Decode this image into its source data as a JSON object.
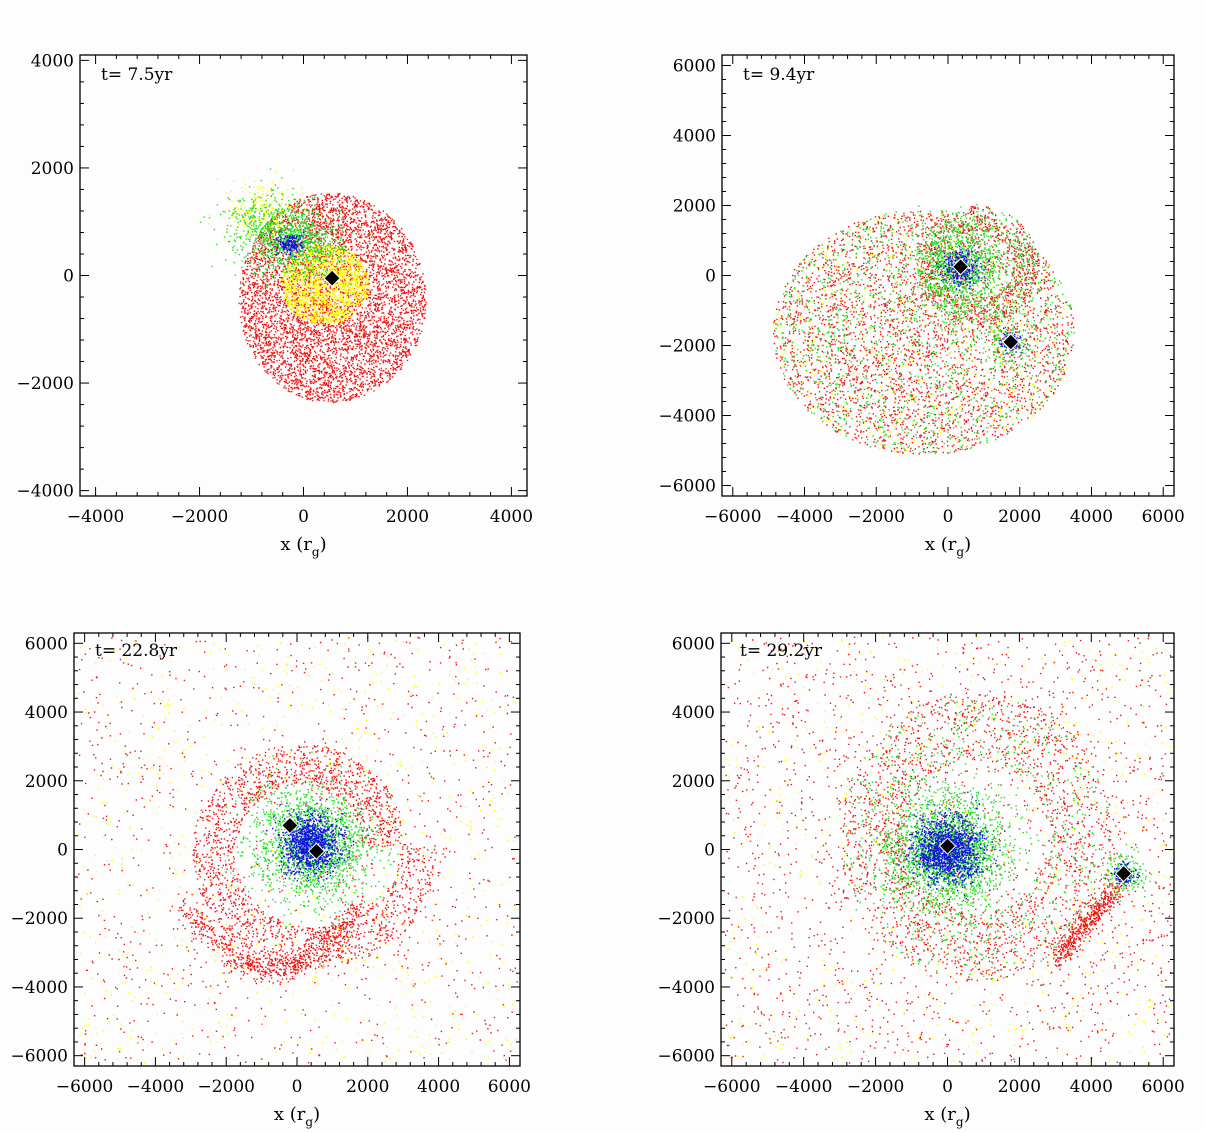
{
  "chart_data": [
    {
      "type": "scatter",
      "time_label": "t=  7.5yr",
      "xlabel": "x (r",
      "xlabel_sub": "g",
      "xlabel_close": ")",
      "xlim": [
        -4300,
        4300
      ],
      "ylim": [
        -4100,
        4100
      ],
      "xticks": [
        -4000,
        -2000,
        0,
        2000,
        4000
      ],
      "yticks": [
        -4000,
        -2000,
        0,
        2000,
        4000
      ],
      "xticklabels": [
        "−4000",
        "−2000",
        "0",
        "2000",
        "4000"
      ],
      "yticklabels": [
        "−4000",
        "−2000",
        "0",
        "2000",
        "4000"
      ],
      "black_holes": [
        {
          "x": 550,
          "y": -50
        }
      ],
      "blue_cores": [
        {
          "x": -250,
          "y": 600
        }
      ],
      "series_colors": {
        "red": "#ee1111",
        "yellow": "#ffff00",
        "green": "#22dd22",
        "blue": "#1111dd"
      }
    },
    {
      "type": "scatter",
      "time_label": "t=  9.4yr",
      "xlabel": "x (r",
      "xlabel_sub": "g",
      "xlabel_close": ")",
      "xlim": [
        -6300,
        6300
      ],
      "ylim": [
        -6300,
        6300
      ],
      "xticks": [
        -6000,
        -4000,
        -2000,
        0,
        2000,
        4000,
        6000
      ],
      "yticks": [
        -6000,
        -4000,
        -2000,
        0,
        2000,
        4000,
        6000
      ],
      "xticklabels": [
        "−6000",
        "−4000",
        "−2000",
        "0",
        "2000",
        "4000",
        "6000"
      ],
      "yticklabels": [
        "−6000",
        "−4000",
        "−2000",
        "0",
        "2000",
        "4000",
        "6000"
      ],
      "black_holes": [
        {
          "x": 350,
          "y": 250
        },
        {
          "x": 1750,
          "y": -1900
        }
      ],
      "blue_cores": [
        {
          "x": 350,
          "y": 250
        },
        {
          "x": 1750,
          "y": -1900
        }
      ],
      "series_colors": {
        "red": "#ee1111",
        "yellow": "#ffff00",
        "green": "#22dd22",
        "blue": "#1111dd"
      }
    },
    {
      "type": "scatter",
      "time_label": "t=  22.8yr",
      "xlabel": "x (r",
      "xlabel_sub": "g",
      "xlabel_close": ")",
      "xlim": [
        -6300,
        6300
      ],
      "ylim": [
        -6300,
        6300
      ],
      "xticks": [
        -6000,
        -4000,
        -2000,
        0,
        2000,
        4000,
        6000
      ],
      "yticks": [
        -6000,
        -4000,
        -2000,
        0,
        2000,
        4000,
        6000
      ],
      "xticklabels": [
        "−6000",
        "−4000",
        "−2000",
        "0",
        "2000",
        "4000",
        "6000"
      ],
      "yticklabels": [
        "−6000",
        "−4000",
        "−2000",
        "0",
        "2000",
        "4000",
        "6000"
      ],
      "black_holes": [
        {
          "x": -200,
          "y": 700
        },
        {
          "x": 550,
          "y": -50
        }
      ],
      "blue_cores": [
        {
          "x": 400,
          "y": 200
        }
      ],
      "series_colors": {
        "red": "#ee1111",
        "yellow": "#ffff00",
        "green": "#22dd22",
        "blue": "#1111dd"
      }
    },
    {
      "type": "scatter",
      "time_label": "t=  29.2yr",
      "xlabel": "x (r",
      "xlabel_sub": "g",
      "xlabel_close": ")",
      "xlim": [
        -6300,
        6300
      ],
      "ylim": [
        -6300,
        6300
      ],
      "xticks": [
        -6000,
        -4000,
        -2000,
        0,
        2000,
        4000,
        6000
      ],
      "yticks": [
        -6000,
        -4000,
        -2000,
        0,
        2000,
        4000,
        6000
      ],
      "xticklabels": [
        "−6000",
        "−4000",
        "−2000",
        "0",
        "2000",
        "4000",
        "6000"
      ],
      "yticklabels": [
        "−6000",
        "−4000",
        "−2000",
        "0",
        "2000",
        "4000",
        "6000"
      ],
      "black_holes": [
        {
          "x": 0,
          "y": 100
        },
        {
          "x": 4900,
          "y": -700
        }
      ],
      "blue_cores": [
        {
          "x": 0,
          "y": 0
        },
        {
          "x": 4900,
          "y": -700
        }
      ],
      "series_colors": {
        "red": "#ee1111",
        "yellow": "#ffff00",
        "green": "#22dd22",
        "blue": "#1111dd"
      }
    }
  ]
}
